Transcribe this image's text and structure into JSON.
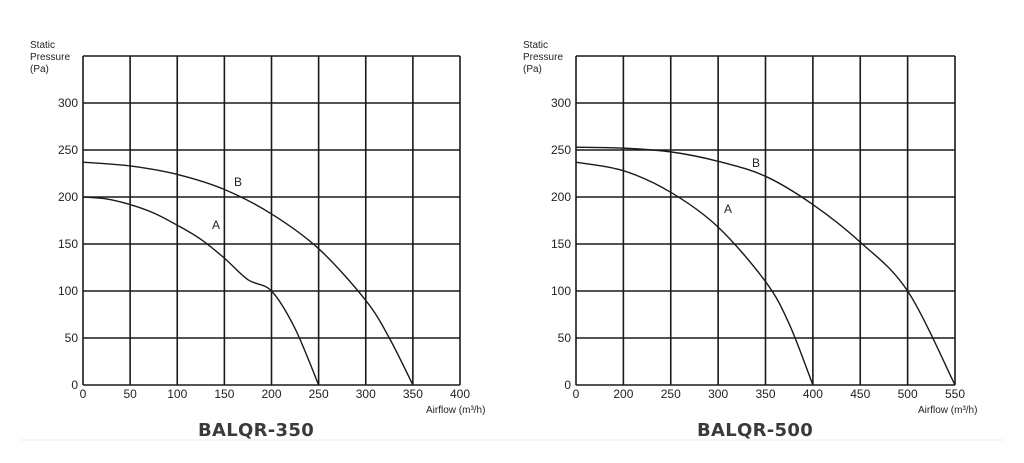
{
  "chart_data": [
    {
      "type": "line",
      "title": "BALQR-350",
      "ylabel_lines": [
        "Static",
        "Pressure",
        "(Pa)"
      ],
      "xlabel": "Airflow (m³/h)",
      "x_ticks": [
        0,
        50,
        100,
        150,
        200,
        250,
        300,
        350,
        400
      ],
      "y_ticks": [
        0,
        50,
        100,
        150,
        200,
        250,
        300
      ],
      "xlim": [
        0,
        400
      ],
      "ylim": [
        0,
        350
      ],
      "grid": true,
      "series": [
        {
          "name": "A",
          "x": [
            0,
            25,
            50,
            75,
            100,
            125,
            150,
            175,
            200,
            225,
            250
          ],
          "y": [
            200,
            198,
            192,
            183,
            170,
            155,
            135,
            112,
            100,
            60,
            0
          ]
        },
        {
          "name": "B",
          "x": [
            0,
            50,
            100,
            150,
            200,
            250,
            300,
            325,
            350
          ],
          "y": [
            237,
            233,
            224,
            208,
            182,
            145,
            90,
            50,
            0
          ]
        }
      ]
    },
    {
      "type": "line",
      "title": "BALQR-500",
      "ylabel_lines": [
        "Static",
        "Pressure",
        "(Pa)"
      ],
      "xlabel": "Airflow (m³/h)",
      "x_ticks": [
        0,
        200,
        250,
        300,
        350,
        400,
        450,
        500,
        550
      ],
      "y_ticks": [
        0,
        50,
        100,
        150,
        200,
        250,
        300
      ],
      "xlim_tick_index": [
        0,
        8
      ],
      "ylim": [
        0,
        350
      ],
      "grid": true,
      "series": [
        {
          "name": "A",
          "tick_pos": [
            0,
            1,
            2,
            3,
            4,
            4.5,
            5
          ],
          "y": [
            237,
            228,
            205,
            168,
            110,
            65,
            0
          ]
        },
        {
          "name": "B",
          "tick_pos": [
            0,
            1,
            2,
            3,
            4,
            5,
            6,
            7,
            8
          ],
          "y": [
            253,
            252,
            248,
            238,
            222,
            192,
            152,
            100,
            0
          ]
        }
      ]
    }
  ]
}
